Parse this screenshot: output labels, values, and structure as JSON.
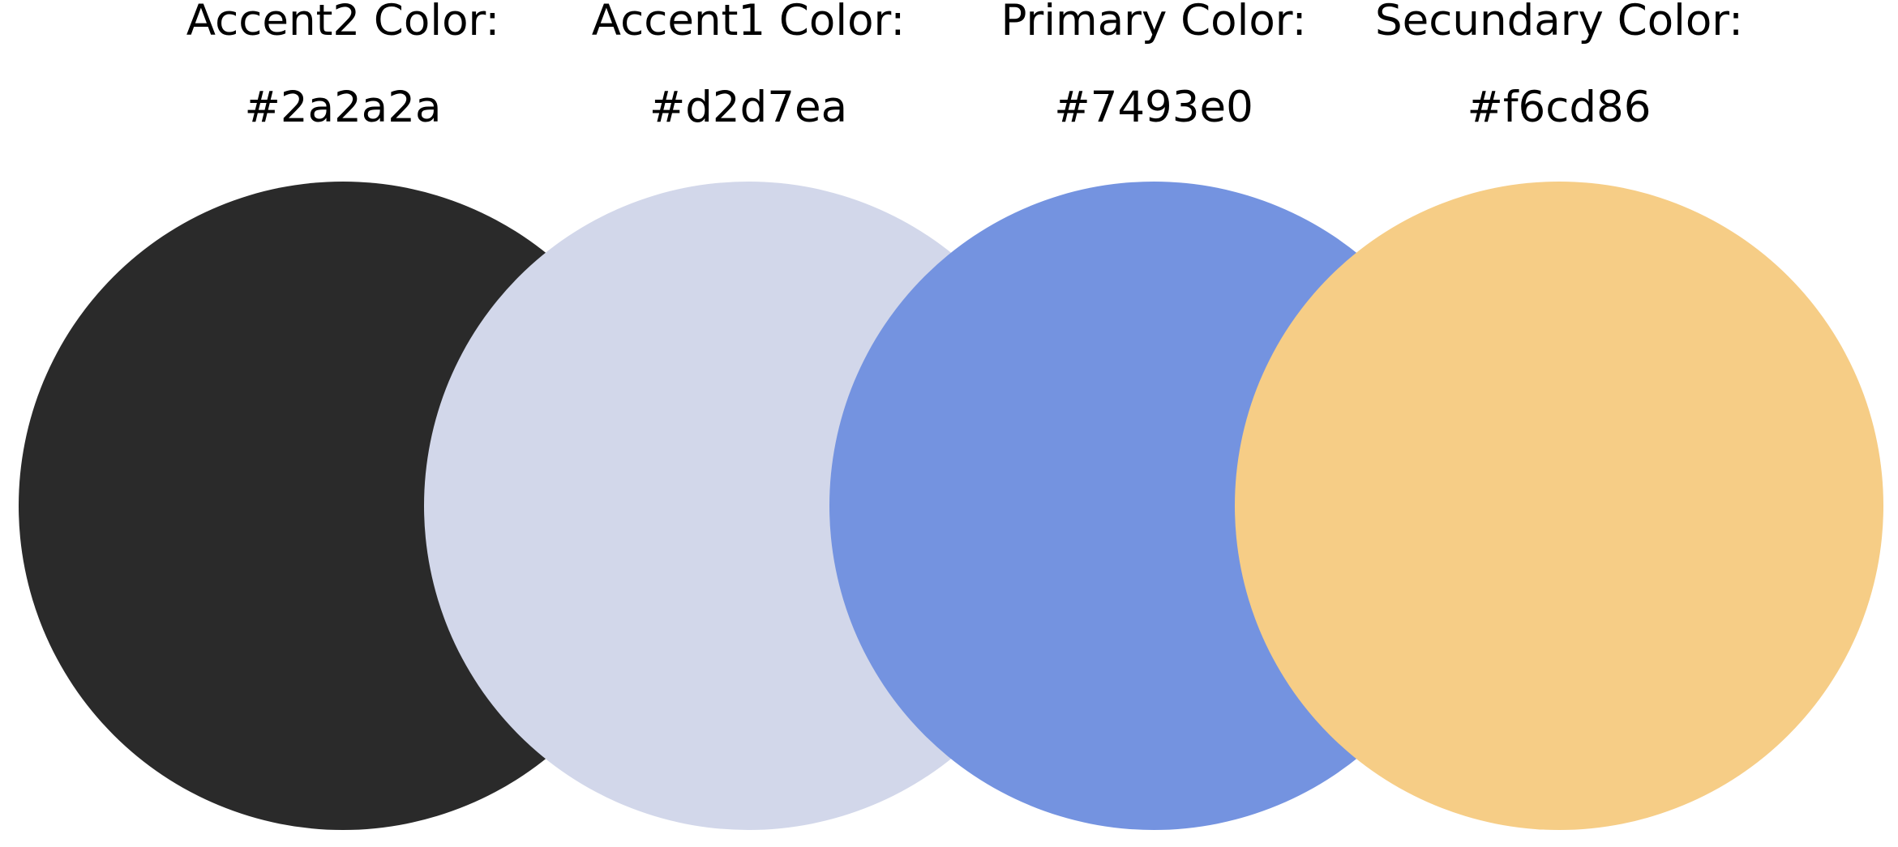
{
  "swatches": [
    {
      "id": "accent2",
      "label": "Accent2 Color:",
      "hex": "#2a2a2a"
    },
    {
      "id": "accent1",
      "label": "Accent1 Color:",
      "hex": "#d2d7ea"
    },
    {
      "id": "primary",
      "label": "Primary Color:",
      "hex": "#7493e0"
    },
    {
      "id": "secondary",
      "label": "Secundary Color:",
      "hex": "#f6cd86"
    }
  ],
  "colors": {
    "text": "#000000",
    "background": "#ffffff"
  }
}
